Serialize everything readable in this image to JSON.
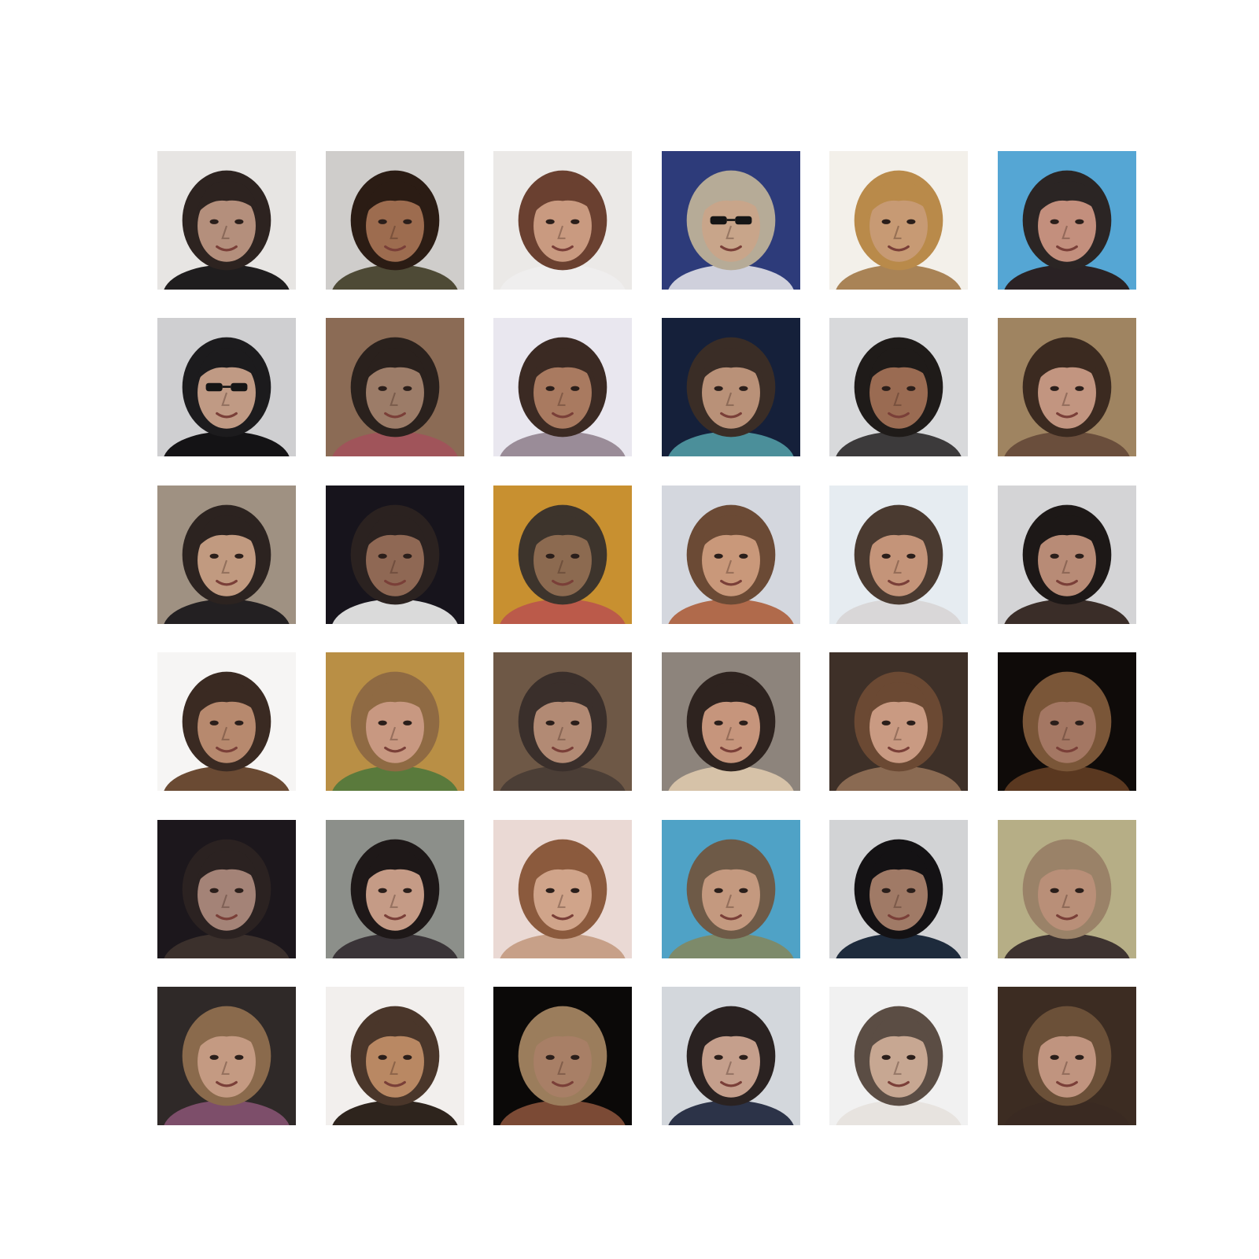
{
  "figure": {
    "rows": 6,
    "cols": 6,
    "background": "#ffffff",
    "tiles": [
      {
        "bg": "#e7e5e3",
        "hair": "#2d2320",
        "skin": "#b48f7c",
        "cloth": "#1f1d1e",
        "glasses": false
      },
      {
        "bg": "#cfcdcb",
        "hair": "#2b1c14",
        "skin": "#9d6c4f",
        "cloth": "#4e4a36",
        "glasses": false
      },
      {
        "bg": "#ebe9e7",
        "hair": "#6a4030",
        "skin": "#c99a80",
        "cloth": "#efeeee",
        "glasses": false
      },
      {
        "bg": "#2d3b7a",
        "hair": "#b6ab97",
        "skin": "#c8a58a",
        "cloth": "#cfd0dc",
        "glasses": true
      },
      {
        "bg": "#f3f0ea",
        "hair": "#b98a4a",
        "skin": "#c79a74",
        "cloth": "#a98356",
        "glasses": false
      },
      {
        "bg": "#55a6d4",
        "hair": "#2b2524",
        "skin": "#c38f7d",
        "cloth": "#2a2224",
        "glasses": false
      },
      {
        "bg": "#cfcfd1",
        "hair": "#1c1b1d",
        "skin": "#c09a84",
        "cloth": "#141315",
        "glasses": true
      },
      {
        "bg": "#8b6b55",
        "hair": "#2a211d",
        "skin": "#9c7c68",
        "cloth": "#a0545a",
        "glasses": false
      },
      {
        "bg": "#e9e7ef",
        "hair": "#3b2a23",
        "skin": "#a97a60",
        "cloth": "#9a8c98",
        "glasses": false
      },
      {
        "bg": "#15203a",
        "hair": "#3a2d26",
        "skin": "#b99178",
        "cloth": "#4b8f9a",
        "glasses": false
      },
      {
        "bg": "#d8d9db",
        "hair": "#1f1b19",
        "skin": "#9a6b52",
        "cloth": "#3c3a3b",
        "glasses": false
      },
      {
        "bg": "#9f8461",
        "hair": "#3b2a20",
        "skin": "#c29580",
        "cloth": "#6a4e3c",
        "glasses": false
      },
      {
        "bg": "#9f9182",
        "hair": "#2c2320",
        "skin": "#c19a80",
        "cloth": "#232022",
        "glasses": false
      },
      {
        "bg": "#17141c",
        "hair": "#2b2220",
        "skin": "#8f6854",
        "cloth": "#dadada",
        "glasses": false
      },
      {
        "bg": "#c89030",
        "hair": "#3d342c",
        "skin": "#8c6a50",
        "cloth": "#bb5a4a",
        "glasses": false
      },
      {
        "bg": "#d4d7de",
        "hair": "#6b4a35",
        "skin": "#c9987a",
        "cloth": "#b06a4b",
        "glasses": false
      },
      {
        "bg": "#e6ecf1",
        "hair": "#4a3a30",
        "skin": "#c49479",
        "cloth": "#d9d7d8",
        "glasses": false
      },
      {
        "bg": "#d4d4d6",
        "hair": "#1d1817",
        "skin": "#b88b76",
        "cloth": "#3a2d28",
        "glasses": false
      },
      {
        "bg": "#f6f5f4",
        "hair": "#3a2a22",
        "skin": "#b7896e",
        "cloth": "#6a4a33",
        "glasses": false
      },
      {
        "bg": "#b98f45",
        "hair": "#8f6a43",
        "skin": "#c89881",
        "cloth": "#5a7a3c",
        "glasses": false
      },
      {
        "bg": "#6e5846",
        "hair": "#3a2f2b",
        "skin": "#b28a74",
        "cloth": "#4b3e36",
        "glasses": false
      },
      {
        "bg": "#8d847c",
        "hair": "#2e231f",
        "skin": "#c6957c",
        "cloth": "#d6c2a8",
        "glasses": false
      },
      {
        "bg": "#3e3028",
        "hair": "#6b4933",
        "skin": "#c99a82",
        "cloth": "#8a6a52",
        "glasses": false
      },
      {
        "bg": "#0f0b09",
        "hair": "#7a5638",
        "skin": "#a47763",
        "cloth": "#5a3820",
        "glasses": false
      },
      {
        "bg": "#1c171c",
        "hair": "#2b2221",
        "skin": "#a48377",
        "cloth": "#3b302c",
        "glasses": false
      },
      {
        "bg": "#8c8f8a",
        "hair": "#1e1818",
        "skin": "#c59b86",
        "cloth": "#3a3438",
        "glasses": false
      },
      {
        "bg": "#ead9d4",
        "hair": "#8b5a3d",
        "skin": "#d0a48a",
        "cloth": "#c7a088",
        "glasses": false
      },
      {
        "bg": "#4fa2c6",
        "hair": "#6e5a47",
        "skin": "#c4997f",
        "cloth": "#7d8a6a",
        "glasses": false
      },
      {
        "bg": "#d2d3d5",
        "hair": "#141214",
        "skin": "#a07a66",
        "cloth": "#1e2b3c",
        "glasses": false
      },
      {
        "bg": "#b6ae86",
        "hair": "#9a8268",
        "skin": "#b98f78",
        "cloth": "#3e3330",
        "glasses": false
      },
      {
        "bg": "#2f2928",
        "hair": "#8a6a4c",
        "skin": "#c49a82",
        "cloth": "#7d4e6a",
        "glasses": false
      },
      {
        "bg": "#f2efed",
        "hair": "#4a362a",
        "skin": "#b98863",
        "cloth": "#2e241d",
        "glasses": false
      },
      {
        "bg": "#0b0908",
        "hair": "#9b7d5c",
        "skin": "#a87f66",
        "cloth": "#7b4a35",
        "glasses": false
      },
      {
        "bg": "#d3d7dc",
        "hair": "#2a2221",
        "skin": "#c59f8c",
        "cloth": "#2c3348",
        "glasses": false
      },
      {
        "bg": "#f1f1f1",
        "hair": "#5b4d44",
        "skin": "#c7a792",
        "cloth": "#e7e3df",
        "glasses": false
      },
      {
        "bg": "#3c2c22",
        "hair": "#6b5038",
        "skin": "#c0947f",
        "cloth": "#3a2a22",
        "glasses": false
      }
    ]
  }
}
